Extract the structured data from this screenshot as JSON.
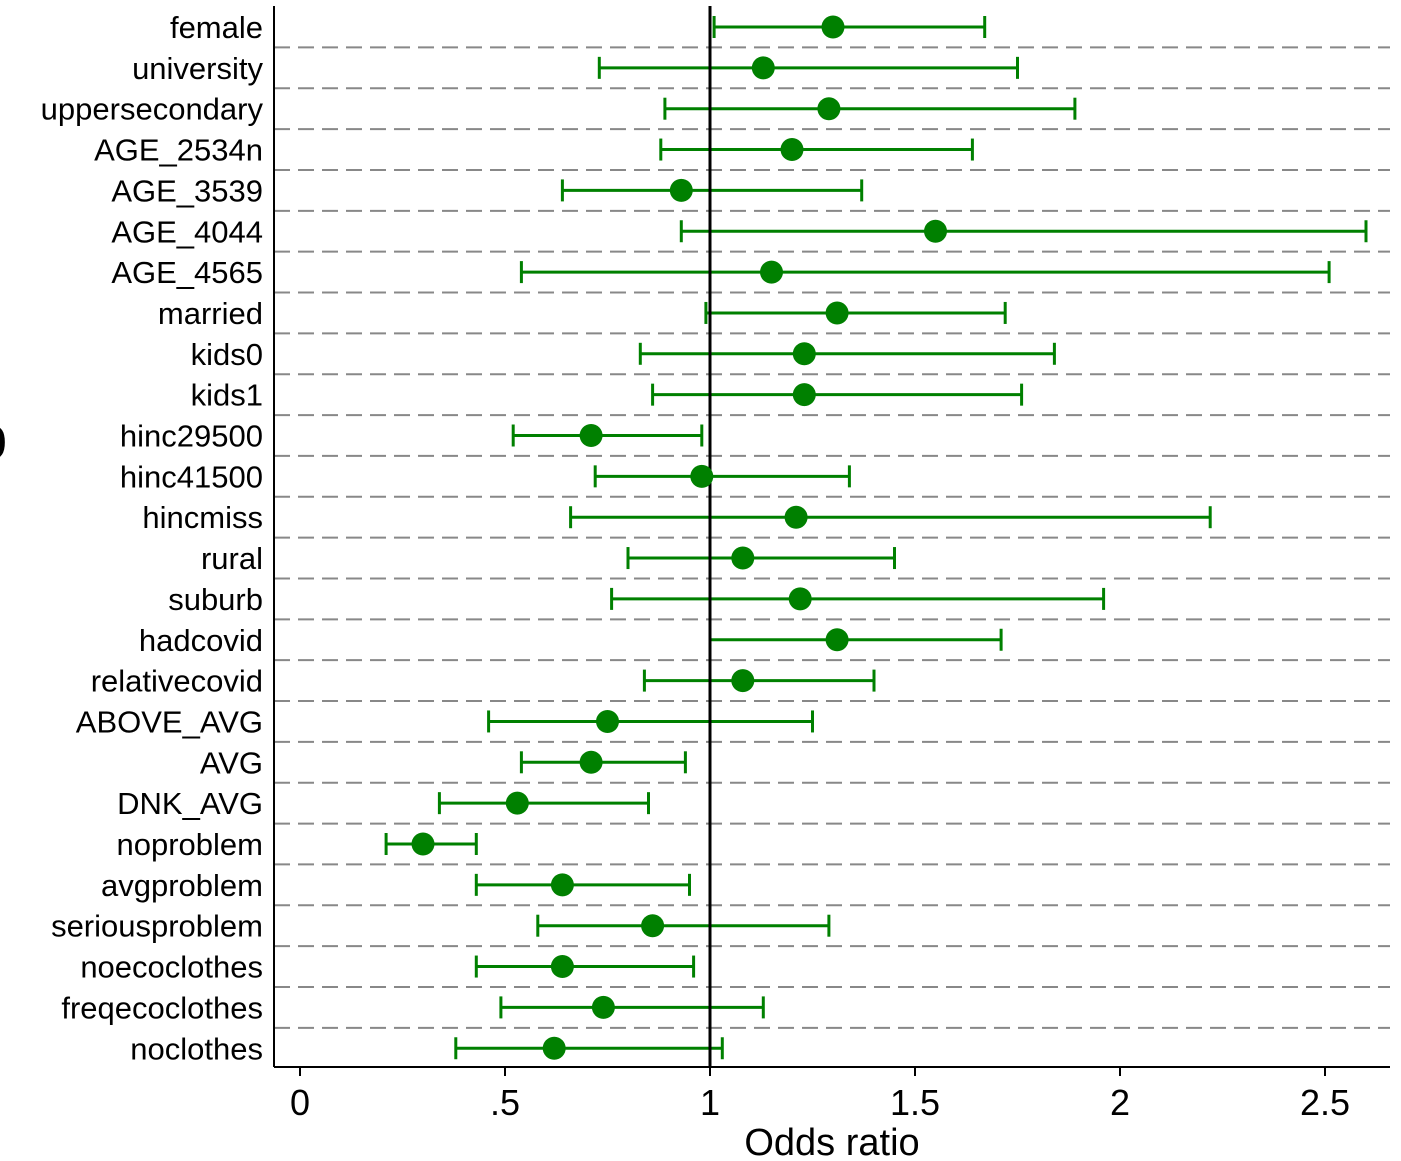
{
  "chart_data": {
    "type": "scatter",
    "subtype": "coefficient-plot-with-confidence-intervals",
    "xlabel": "Odds ratio",
    "ylabel": "",
    "title": "",
    "xlim": [
      -0.06,
      2.66
    ],
    "xticks": [
      0,
      0.5,
      1,
      1.5,
      2,
      2.5
    ],
    "xtick_labels": [
      "0",
      ".5",
      "1",
      "1.5",
      "2",
      "2.5"
    ],
    "reference_line": 1,
    "grid": "horizontal-dashed",
    "marker_color": "#008000",
    "ref_line_color": "#000000",
    "grid_color": "#888888",
    "panel_letter": "b",
    "categories": [
      "female",
      "university",
      "uppersecondary",
      "AGE_2534n",
      "AGE_3539",
      "AGE_4044",
      "AGE_4565",
      "married",
      "kids0",
      "kids1",
      "hinc29500",
      "hinc41500",
      "hincmiss",
      "rural",
      "suburb",
      "hadcovid",
      "relativecovid",
      "ABOVE_AVG",
      "AVG",
      "DNK_AVG",
      "noproblem",
      "avgproblem",
      "seriousproblem",
      "noecoclothes",
      "freqecoclothes",
      "noclothes"
    ],
    "series": [
      {
        "estimate": [
          1.3,
          1.13,
          1.29,
          1.2,
          0.93,
          1.55,
          1.15,
          1.31,
          1.23,
          1.23,
          0.71,
          0.98,
          1.21,
          1.08,
          1.22,
          1.31,
          1.08,
          0.75,
          0.71,
          0.53,
          0.3,
          0.64,
          0.86,
          0.64,
          0.74,
          0.62
        ],
        "ci_low": [
          1.01,
          0.73,
          0.89,
          0.88,
          0.64,
          0.93,
          0.54,
          0.99,
          0.83,
          0.86,
          0.52,
          0.72,
          0.66,
          0.8,
          0.76,
          1.0,
          0.84,
          0.46,
          0.54,
          0.34,
          0.21,
          0.43,
          0.58,
          0.43,
          0.49,
          0.38
        ],
        "ci_high": [
          1.67,
          1.75,
          1.89,
          1.64,
          1.37,
          2.6,
          2.51,
          1.72,
          1.84,
          1.76,
          0.98,
          1.34,
          2.22,
          1.45,
          1.96,
          1.71,
          1.4,
          1.25,
          0.94,
          0.85,
          0.43,
          0.95,
          1.29,
          0.96,
          1.13,
          1.03
        ]
      }
    ]
  }
}
